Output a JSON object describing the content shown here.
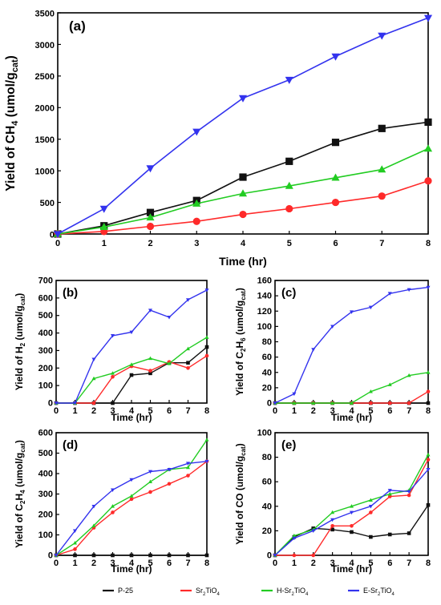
{
  "series_styles": [
    {
      "name": "P-25",
      "color": "#111111",
      "marker": "square"
    },
    {
      "name": "Sr2TiO4",
      "color": "#ff2a2a",
      "marker": "circle"
    },
    {
      "name": "H-Sr2TiO4",
      "color": "#22cc22",
      "marker": "triangle-up"
    },
    {
      "name": "E-Sr2TiO4",
      "color": "#3333ee",
      "marker": "triangle-down"
    }
  ],
  "legend": {
    "placement": "bottom",
    "items": [
      {
        "parts": [
          {
            "t": "P-25"
          }
        ]
      },
      {
        "parts": [
          {
            "t": "Sr"
          },
          {
            "t": "2",
            "sub": true
          },
          {
            "t": "TiO"
          },
          {
            "t": "4",
            "sub": true
          }
        ]
      },
      {
        "parts": [
          {
            "t": "H-Sr"
          },
          {
            "t": "2",
            "sub": true
          },
          {
            "t": "TiO"
          },
          {
            "t": "4",
            "sub": true
          }
        ]
      },
      {
        "parts": [
          {
            "t": "E-Sr"
          },
          {
            "t": "2",
            "sub": true
          },
          {
            "t": "TiO"
          },
          {
            "t": "4",
            "sub": true
          }
        ]
      }
    ]
  },
  "chart_data": [
    {
      "type": "line",
      "panel": "(a)",
      "xlabel": "Time (hr)",
      "ylabel_parts": [
        {
          "t": "Yield of CH"
        },
        {
          "t": "4",
          "sub": true
        },
        {
          "t": " (umol/g"
        },
        {
          "t": "cat",
          "sub": true
        },
        {
          "t": ")"
        }
      ],
      "x": [
        0,
        1,
        2,
        3,
        4,
        5,
        6,
        7,
        8
      ],
      "xlim": [
        0,
        8
      ],
      "xticks": [
        0,
        1,
        2,
        3,
        4,
        5,
        6,
        7,
        8
      ],
      "ylim": [
        0,
        3500
      ],
      "yticks": [
        0,
        500,
        1000,
        1500,
        2000,
        2500,
        3000,
        3500
      ],
      "grid": false,
      "series": [
        {
          "name": "P-25",
          "values": [
            0,
            130,
            340,
            530,
            900,
            1150,
            1450,
            1670,
            1770
          ]
        },
        {
          "name": "Sr2TiO4",
          "values": [
            0,
            40,
            120,
            200,
            310,
            400,
            500,
            600,
            840
          ]
        },
        {
          "name": "H-Sr2TiO4",
          "values": [
            0,
            110,
            260,
            480,
            640,
            760,
            890,
            1020,
            1350
          ]
        },
        {
          "name": "E-Sr2TiO4",
          "values": [
            0,
            400,
            1040,
            1620,
            2150,
            2440,
            2810,
            3140,
            3420
          ]
        }
      ]
    },
    {
      "type": "line",
      "panel": "(b)",
      "xlabel": "Time (hr)",
      "ylabel_parts": [
        {
          "t": "Yield of H"
        },
        {
          "t": "2",
          "sub": true
        },
        {
          "t": " (umol/g"
        },
        {
          "t": "cat",
          "sub": true
        },
        {
          "t": ")"
        }
      ],
      "x": [
        0,
        1,
        2,
        3,
        4,
        5,
        6,
        7,
        8
      ],
      "xlim": [
        0,
        8
      ],
      "xticks": [
        0,
        1,
        2,
        3,
        4,
        5,
        6,
        7,
        8
      ],
      "ylim": [
        0,
        700
      ],
      "yticks": [
        0,
        100,
        200,
        300,
        400,
        500,
        600,
        700
      ],
      "grid": false,
      "series": [
        {
          "name": "P-25",
          "values": [
            0,
            0,
            0,
            0,
            160,
            170,
            230,
            230,
            320
          ]
        },
        {
          "name": "Sr2TiO4",
          "values": [
            0,
            0,
            0,
            150,
            210,
            185,
            235,
            200,
            270
          ]
        },
        {
          "name": "H-Sr2TiO4",
          "values": [
            0,
            0,
            140,
            170,
            220,
            255,
            225,
            310,
            375
          ]
        },
        {
          "name": "E-Sr2TiO4",
          "values": [
            0,
            0,
            250,
            385,
            405,
            530,
            490,
            590,
            645
          ]
        }
      ]
    },
    {
      "type": "line",
      "panel": "(c)",
      "xlabel": "Time (hr)",
      "ylabel_parts": [
        {
          "t": "Yield of C"
        },
        {
          "t": "2",
          "sub": true
        },
        {
          "t": "H"
        },
        {
          "t": "6",
          "sub": true
        },
        {
          "t": " (umol/g"
        },
        {
          "t": "cat",
          "sub": true
        },
        {
          "t": ")"
        }
      ],
      "x": [
        0,
        1,
        2,
        3,
        4,
        5,
        6,
        7,
        8
      ],
      "xlim": [
        0,
        8
      ],
      "xticks": [
        0,
        1,
        2,
        3,
        4,
        5,
        6,
        7,
        8
      ],
      "ylim": [
        0,
        160
      ],
      "yticks": [
        0,
        20,
        40,
        60,
        80,
        100,
        120,
        140,
        160
      ],
      "grid": false,
      "series": [
        {
          "name": "P-25",
          "values": [
            0,
            0,
            0,
            0,
            0,
            0,
            0,
            0,
            0
          ]
        },
        {
          "name": "Sr2TiO4",
          "values": [
            0,
            0,
            0,
            0,
            0,
            0,
            0,
            0,
            15
          ]
        },
        {
          "name": "H-Sr2TiO4",
          "values": [
            0,
            0,
            0,
            0,
            0,
            15,
            24,
            36,
            40
          ]
        },
        {
          "name": "E-Sr2TiO4",
          "values": [
            0,
            12,
            70,
            100,
            119,
            125,
            143,
            148,
            151
          ]
        }
      ]
    },
    {
      "type": "line",
      "panel": "(d)",
      "xlabel": "Time (hr)",
      "ylabel_parts": [
        {
          "t": "Yield of C"
        },
        {
          "t": "2",
          "sub": true
        },
        {
          "t": "H"
        },
        {
          "t": "4",
          "sub": true
        },
        {
          "t": " (umol/g"
        },
        {
          "t": "cat",
          "sub": true
        },
        {
          "t": ")"
        }
      ],
      "x": [
        0,
        1,
        2,
        3,
        4,
        5,
        6,
        7,
        8
      ],
      "xlim": [
        0,
        8
      ],
      "xticks": [
        0,
        1,
        2,
        3,
        4,
        5,
        6,
        7,
        8
      ],
      "ylim": [
        0,
        600
      ],
      "yticks": [
        0,
        100,
        200,
        300,
        400,
        500,
        600
      ],
      "grid": false,
      "series": [
        {
          "name": "P-25",
          "values": [
            0,
            0,
            0,
            0,
            0,
            0,
            0,
            0,
            0
          ]
        },
        {
          "name": "Sr2TiO4",
          "values": [
            0,
            30,
            135,
            210,
            275,
            310,
            350,
            390,
            460
          ]
        },
        {
          "name": "H-Sr2TiO4",
          "values": [
            0,
            60,
            145,
            240,
            290,
            360,
            420,
            430,
            565
          ]
        },
        {
          "name": "E-Sr2TiO4",
          "values": [
            0,
            120,
            240,
            320,
            370,
            410,
            420,
            450,
            460
          ]
        }
      ]
    },
    {
      "type": "line",
      "panel": "(e)",
      "xlabel": "Time (hr)",
      "ylabel_parts": [
        {
          "t": "Yield of CO (umol/g"
        },
        {
          "t": "cat",
          "sub": true
        },
        {
          "t": ")"
        }
      ],
      "x": [
        0,
        1,
        2,
        3,
        4,
        5,
        6,
        7,
        8
      ],
      "xlim": [
        0,
        8
      ],
      "xticks": [
        0,
        1,
        2,
        3,
        4,
        5,
        6,
        7,
        8
      ],
      "ylim": [
        0,
        100
      ],
      "yticks": [
        0,
        20,
        40,
        60,
        80,
        100
      ],
      "grid": false,
      "series": [
        {
          "name": "P-25",
          "values": [
            0,
            15,
            22,
            21,
            19,
            15,
            17,
            18,
            41
          ]
        },
        {
          "name": "Sr2TiO4",
          "values": [
            0,
            0,
            0,
            24,
            24,
            35,
            48,
            49,
            78
          ]
        },
        {
          "name": "H-Sr2TiO4",
          "values": [
            0,
            16,
            21,
            35,
            40,
            45,
            50,
            53,
            82
          ]
        },
        {
          "name": "E-Sr2TiO4",
          "values": [
            0,
            14,
            20,
            29,
            35,
            40,
            53,
            52,
            70
          ]
        }
      ]
    }
  ]
}
